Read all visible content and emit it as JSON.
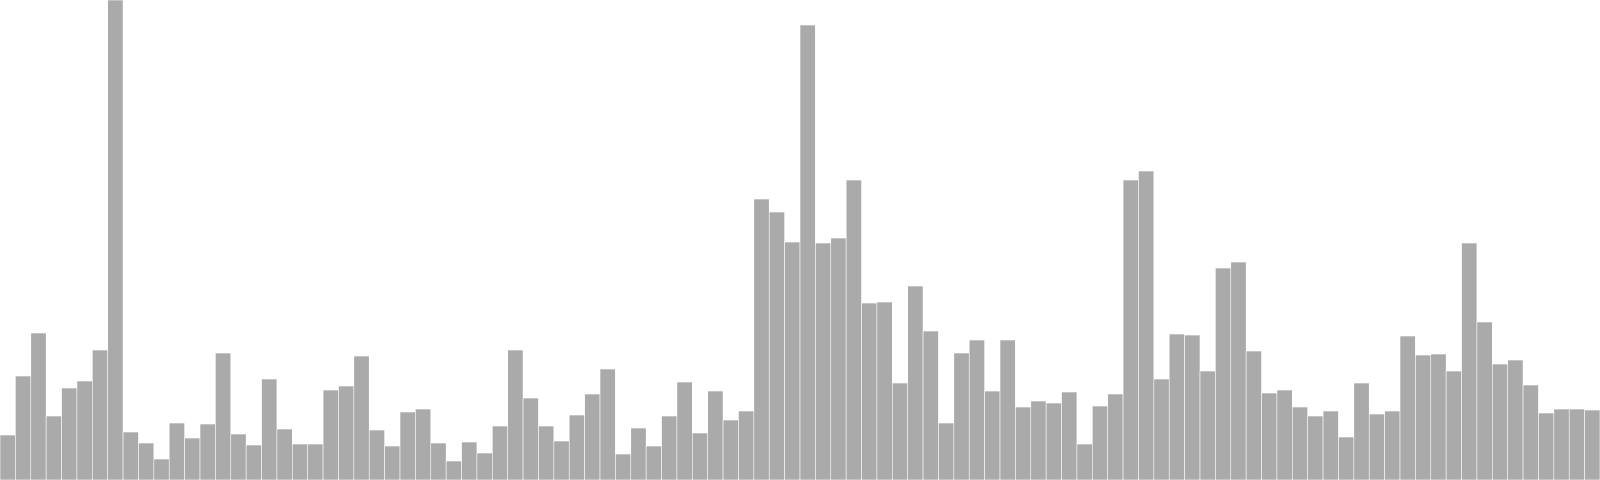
{
  "chart_data": {
    "type": "bar",
    "title": "",
    "xlabel": "",
    "ylabel": "",
    "grid": false,
    "legend": "none",
    "bar_color": "#aaaaaa",
    "ylim": [
      0,
      480
    ],
    "values": [
      45,
      104,
      147,
      64,
      92,
      99,
      130,
      480,
      48,
      37,
      21,
      57,
      42,
      56,
      127,
      46,
      35,
      101,
      51,
      36,
      36,
      90,
      94,
      124,
      50,
      34,
      68,
      71,
      37,
      19,
      38,
      27,
      54,
      130,
      82,
      54,
      39,
      65,
      86,
      111,
      26,
      52,
      34,
      64,
      98,
      47,
      89,
      60,
      69,
      281,
      268,
      238,
      455,
      237,
      242,
      300,
      177,
      178,
      97,
      194,
      149,
      57,
      127,
      140,
      89,
      140,
      73,
      79,
      77,
      88,
      36,
      74,
      86,
      300,
      309,
      101,
      146,
      145,
      109,
      212,
      218,
      129,
      87,
      90,
      73,
      64,
      69,
      43,
      97,
      66,
      69,
      144,
      125,
      126,
      109,
      237,
      158,
      116,
      120,
      95,
      67,
      71,
      71,
      70
    ]
  }
}
